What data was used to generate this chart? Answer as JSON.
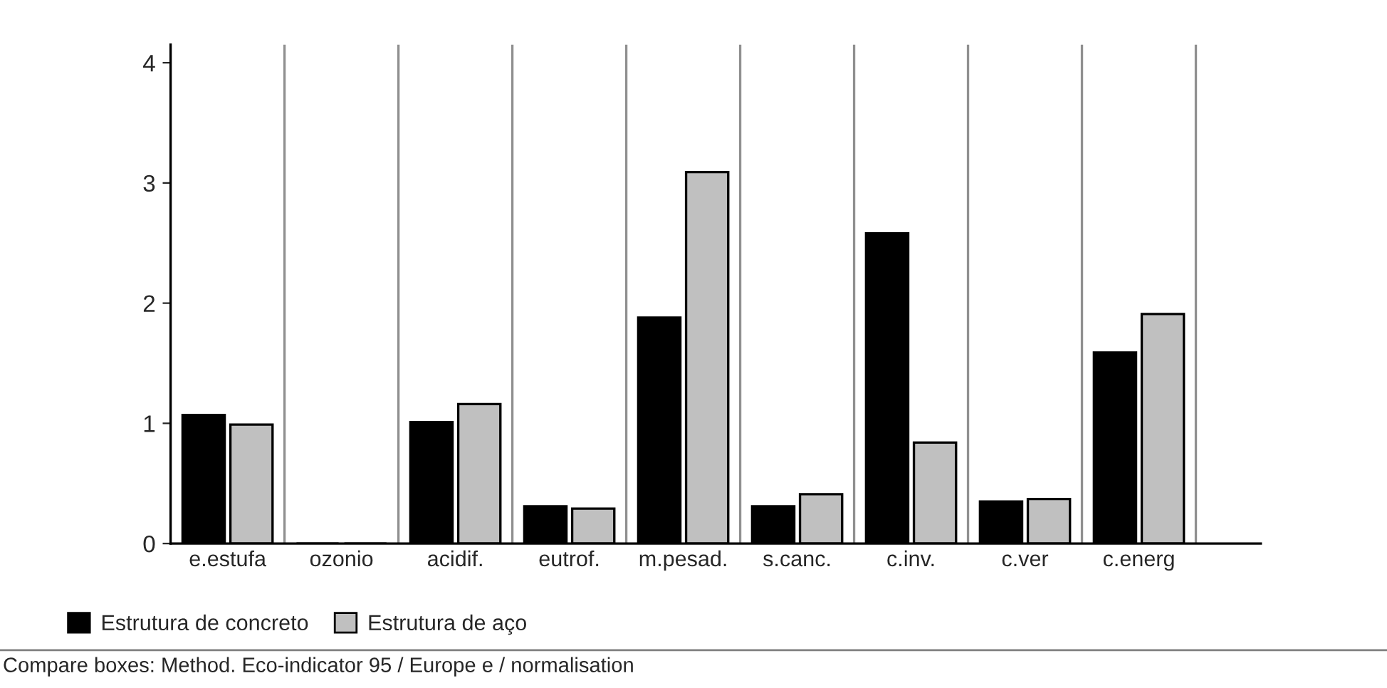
{
  "chart_data": {
    "type": "bar",
    "categories": [
      "e.estufa",
      "ozonio",
      "acidif.",
      "eutrof.",
      "m.pesad.",
      "s.canc.",
      "c.inv.",
      "c.ver",
      "c.energ"
    ],
    "series": [
      {
        "name": "Estrutura de concreto",
        "color": "#000000",
        "values": [
          1.07,
          0,
          1.01,
          0.31,
          1.88,
          0.31,
          2.58,
          0.35,
          1.59
        ]
      },
      {
        "name": "Estrutura de aço",
        "color": "#c0c0c0",
        "values": [
          0.99,
          0,
          1.16,
          0.29,
          3.09,
          0.41,
          0.84,
          0.37,
          1.91
        ]
      }
    ],
    "ylim": [
      0,
      4.15
    ],
    "yticks": [
      0,
      1,
      2,
      3,
      4
    ],
    "grid": "x",
    "legend": "bottom left",
    "annotations": [
      "Compare boxes: Method. Eco-indicator 95 / Europe e / normalisation"
    ]
  }
}
